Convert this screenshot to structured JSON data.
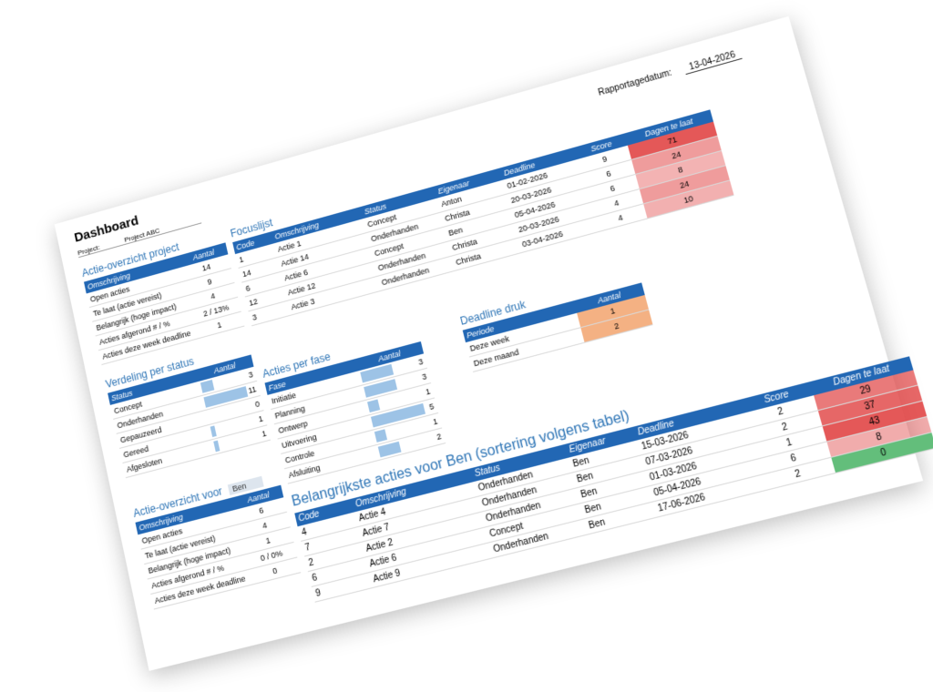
{
  "header": {
    "title": "Dashboard",
    "project_label": "Project:",
    "project": "Project ABC",
    "report_date_label": "Rapportagedatum:",
    "report_date": "13-04-2026"
  },
  "actie_overzicht_project": {
    "title": "Actie-overzicht project",
    "columns": [
      "Omschrijving",
      "Aantal"
    ],
    "rows": [
      [
        "Open acties",
        14
      ],
      [
        "Te laat (actie vereist)",
        9
      ],
      [
        "Belangrijk (hoge impact)",
        4
      ],
      [
        "Acties afgerond # / %",
        "2 / 13%"
      ],
      [
        "Acties deze week deadline",
        1
      ]
    ]
  },
  "verdeling_per_status": {
    "title": "Verdeling per status",
    "columns": [
      "Status",
      "Aantal"
    ],
    "rows": [
      [
        "Concept",
        3
      ],
      [
        "Onderhanden",
        11
      ],
      [
        "Gepauzeerd",
        0
      ],
      [
        "Gereed",
        1
      ],
      [
        "Afgesloten",
        1
      ]
    ]
  },
  "actie_overzicht_voor": {
    "title": "Actie-overzicht voor",
    "person": "Ben",
    "columns": [
      "Omschrijving",
      "Aantal"
    ],
    "rows": [
      [
        "Open acties",
        6
      ],
      [
        "Te laat (actie vereist)",
        4
      ],
      [
        "Belangrijk (hoge impact)",
        1
      ],
      [
        "Acties afgerond # / %",
        "0 / 0%"
      ],
      [
        "Acties deze week deadline",
        0
      ]
    ]
  },
  "focuslijst": {
    "title": "Focuslijst",
    "columns": [
      "Code",
      "Omschrijving",
      "Status",
      "Eigenaar",
      "Deadline",
      "Score",
      "Dagen te laat"
    ],
    "rows": [
      [
        1,
        "Actie 1",
        "Concept",
        "Anton",
        "01-02-2026",
        9,
        71
      ],
      [
        14,
        "Actie 14",
        "Onderhanden",
        "Christa",
        "20-03-2026",
        6,
        24
      ],
      [
        6,
        "Actie 6",
        "Concept",
        "Ben",
        "05-04-2026",
        6,
        8
      ],
      [
        12,
        "Actie 12",
        "Onderhanden",
        "Christa",
        "20-03-2026",
        4,
        24
      ],
      [
        3,
        "Actie 3",
        "Onderhanden",
        "Christa",
        "03-04-2026",
        4,
        10
      ]
    ]
  },
  "acties_per_fase": {
    "title": "Acties per fase",
    "columns": [
      "Fase",
      "Aantal"
    ],
    "rows": [
      [
        "Initiatie",
        3
      ],
      [
        "Planning",
        3
      ],
      [
        "Ontwerp",
        1
      ],
      [
        "Uitvoering",
        5
      ],
      [
        "Controle",
        1
      ],
      [
        "Afsluiting",
        2
      ]
    ]
  },
  "deadline_druk": {
    "title": "Deadline druk",
    "columns": [
      "Periode",
      "Aantal"
    ],
    "rows": [
      [
        "Deze week",
        1
      ],
      [
        "Deze maand",
        2
      ]
    ]
  },
  "belangrijkste_acties": {
    "title": "Belangrijkste acties voor Ben (sortering volgens tabel)",
    "columns": [
      "Code",
      "Omschrijving",
      "Status",
      "Eigenaar",
      "Deadline",
      "Score",
      "Dagen te laat"
    ],
    "rows": [
      [
        4,
        "Actie 4",
        "Onderhanden",
        "Ben",
        "15-03-2026",
        2,
        29
      ],
      [
        7,
        "Actie 7",
        "Onderhanden",
        "Ben",
        "07-03-2026",
        2,
        37
      ],
      [
        2,
        "Actie 2",
        "Onderhanden",
        "Ben",
        "01-03-2026",
        1,
        43
      ],
      [
        6,
        "Actie 6",
        "Concept",
        "Ben",
        "05-04-2026",
        6,
        8
      ],
      [
        9,
        "Actie 9",
        "Onderhanden",
        "Ben",
        "17-06-2026",
        2,
        0
      ]
    ]
  }
}
